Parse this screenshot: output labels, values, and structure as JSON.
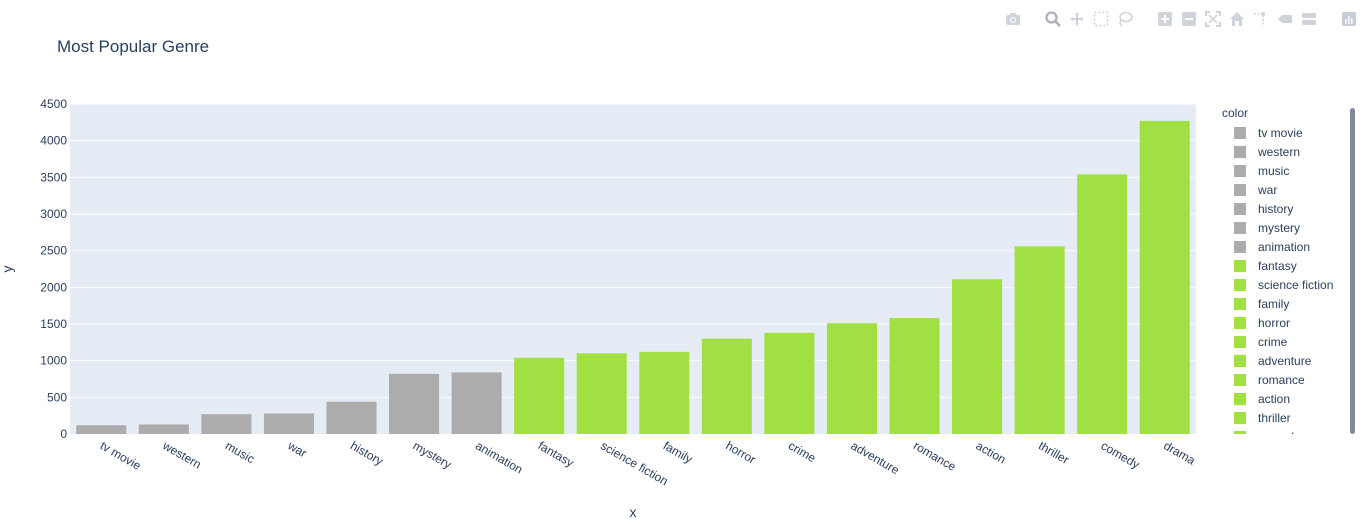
{
  "modebar": {
    "icons": [
      "camera-icon",
      "zoom-icon",
      "pan-icon",
      "box-select-icon",
      "lasso-icon",
      "zoom-in-icon",
      "zoom-out-icon",
      "autoscale-icon",
      "home-icon",
      "spike-lines-icon",
      "hover-closest-icon",
      "hover-compare-icon",
      "plotly-logo-icon"
    ]
  },
  "legend": {
    "title": "color"
  },
  "colors": {
    "gray": "#abacab",
    "green": "#a1e043",
    "plot_bg": "#e5ecf6",
    "grid": "#ffffff",
    "text": "#2a3f5f"
  },
  "chart_data": {
    "type": "bar",
    "title": "Most Popular Genre",
    "xlabel": "x",
    "ylabel": "y",
    "ylim": [
      0,
      4500
    ],
    "yticks": [
      0,
      500,
      1000,
      1500,
      2000,
      2500,
      3000,
      3500,
      4000,
      4500
    ],
    "grid": true,
    "legend_position": "right",
    "categories": [
      "tv movie",
      "western",
      "music",
      "war",
      "history",
      "mystery",
      "animation",
      "fantasy",
      "science fiction",
      "family",
      "horror",
      "crime",
      "adventure",
      "romance",
      "action",
      "thriller",
      "comedy",
      "drama"
    ],
    "values": [
      120,
      130,
      270,
      280,
      440,
      820,
      840,
      1040,
      1100,
      1120,
      1300,
      1380,
      1510,
      1580,
      2110,
      2560,
      3540,
      4270
    ],
    "color_groups": [
      "gray",
      "gray",
      "gray",
      "gray",
      "gray",
      "gray",
      "gray",
      "green",
      "green",
      "green",
      "green",
      "green",
      "green",
      "green",
      "green",
      "green",
      "green",
      "green"
    ]
  }
}
